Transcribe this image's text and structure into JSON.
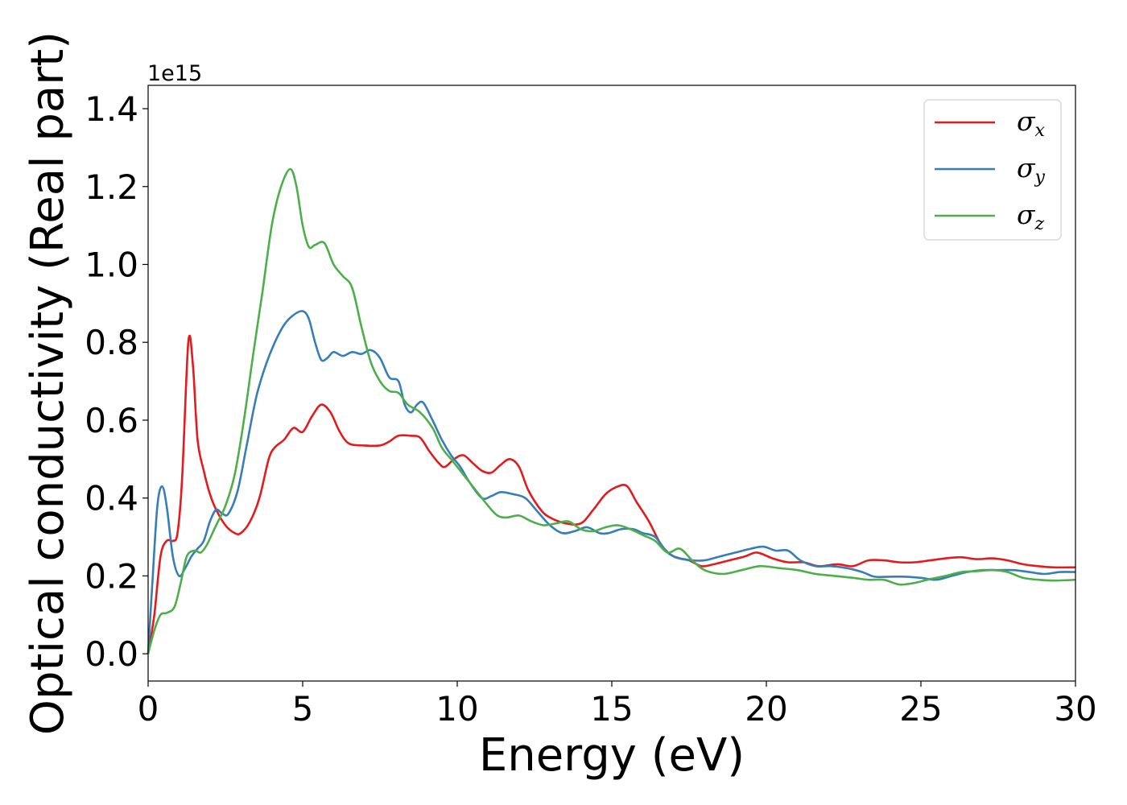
{
  "chart_data": {
    "type": "line",
    "xlabel": "Energy (eV)",
    "ylabel": "Optical conductivity (Real part)",
    "y_offset_label": "1e15",
    "xlim": [
      0,
      30
    ],
    "ylim": [
      -0.07,
      1.46
    ],
    "x_ticks": [
      "0",
      "5",
      "10",
      "15",
      "20",
      "25",
      "30"
    ],
    "y_ticks": [
      "0.0",
      "0.2",
      "0.4",
      "0.6",
      "0.8",
      "1.0",
      "1.2",
      "1.4"
    ],
    "legend_position": "upper right",
    "grid": false,
    "series": [
      {
        "name": "σ",
        "sub": "x",
        "color": "#e41a1c",
        "points": [
          [
            0,
            0
          ],
          [
            0.2,
            0.1
          ],
          [
            0.4,
            0.25
          ],
          [
            0.6,
            0.29
          ],
          [
            0.8,
            0.29
          ],
          [
            0.95,
            0.31
          ],
          [
            1.1,
            0.45
          ],
          [
            1.3,
            0.8
          ],
          [
            1.45,
            0.74
          ],
          [
            1.6,
            0.55
          ],
          [
            1.8,
            0.47
          ],
          [
            2.0,
            0.41
          ],
          [
            2.2,
            0.37
          ],
          [
            2.5,
            0.33
          ],
          [
            2.8,
            0.31
          ],
          [
            3.0,
            0.31
          ],
          [
            3.3,
            0.34
          ],
          [
            3.6,
            0.4
          ],
          [
            3.9,
            0.5
          ],
          [
            4.1,
            0.53
          ],
          [
            4.4,
            0.55
          ],
          [
            4.7,
            0.58
          ],
          [
            5.0,
            0.57
          ],
          [
            5.3,
            0.61
          ],
          [
            5.6,
            0.64
          ],
          [
            5.9,
            0.62
          ],
          [
            6.2,
            0.57
          ],
          [
            6.5,
            0.54
          ],
          [
            7.0,
            0.535
          ],
          [
            7.5,
            0.535
          ],
          [
            7.8,
            0.545
          ],
          [
            8.1,
            0.56
          ],
          [
            8.5,
            0.56
          ],
          [
            8.8,
            0.555
          ],
          [
            9.1,
            0.52
          ],
          [
            9.4,
            0.49
          ],
          [
            9.6,
            0.48
          ],
          [
            9.9,
            0.5
          ],
          [
            10.2,
            0.51
          ],
          [
            10.5,
            0.49
          ],
          [
            10.8,
            0.47
          ],
          [
            11.1,
            0.465
          ],
          [
            11.4,
            0.485
          ],
          [
            11.7,
            0.5
          ],
          [
            12.0,
            0.48
          ],
          [
            12.3,
            0.42
          ],
          [
            12.7,
            0.37
          ],
          [
            13.0,
            0.35
          ],
          [
            13.5,
            0.335
          ],
          [
            14.0,
            0.335
          ],
          [
            14.4,
            0.37
          ],
          [
            14.8,
            0.41
          ],
          [
            15.2,
            0.43
          ],
          [
            15.5,
            0.43
          ],
          [
            15.8,
            0.39
          ],
          [
            16.2,
            0.34
          ],
          [
            16.6,
            0.28
          ],
          [
            17.0,
            0.25
          ],
          [
            17.5,
            0.24
          ],
          [
            17.9,
            0.225
          ],
          [
            18.3,
            0.23
          ],
          [
            18.8,
            0.24
          ],
          [
            19.3,
            0.25
          ],
          [
            19.7,
            0.26
          ],
          [
            20.2,
            0.245
          ],
          [
            20.7,
            0.235
          ],
          [
            21.2,
            0.235
          ],
          [
            21.7,
            0.225
          ],
          [
            22.3,
            0.23
          ],
          [
            22.8,
            0.225
          ],
          [
            23.3,
            0.24
          ],
          [
            23.8,
            0.24
          ],
          [
            24.3,
            0.235
          ],
          [
            24.8,
            0.235
          ],
          [
            25.3,
            0.24
          ],
          [
            25.8,
            0.245
          ],
          [
            26.3,
            0.248
          ],
          [
            26.8,
            0.243
          ],
          [
            27.3,
            0.245
          ],
          [
            27.8,
            0.24
          ],
          [
            28.3,
            0.23
          ],
          [
            28.8,
            0.225
          ],
          [
            29.3,
            0.222
          ],
          [
            30,
            0.222
          ]
        ]
      },
      {
        "name": "σ",
        "sub": "y",
        "color": "#377eb8",
        "points": [
          [
            0,
            0
          ],
          [
            0.15,
            0.2
          ],
          [
            0.3,
            0.38
          ],
          [
            0.45,
            0.43
          ],
          [
            0.6,
            0.38
          ],
          [
            0.8,
            0.25
          ],
          [
            1.0,
            0.2
          ],
          [
            1.2,
            0.22
          ],
          [
            1.4,
            0.25
          ],
          [
            1.6,
            0.27
          ],
          [
            1.8,
            0.29
          ],
          [
            2.0,
            0.34
          ],
          [
            2.2,
            0.37
          ],
          [
            2.4,
            0.36
          ],
          [
            2.6,
            0.36
          ],
          [
            2.9,
            0.42
          ],
          [
            3.2,
            0.54
          ],
          [
            3.5,
            0.66
          ],
          [
            3.8,
            0.74
          ],
          [
            4.1,
            0.8
          ],
          [
            4.4,
            0.845
          ],
          [
            4.7,
            0.87
          ],
          [
            5.0,
            0.88
          ],
          [
            5.2,
            0.86
          ],
          [
            5.4,
            0.8
          ],
          [
            5.6,
            0.755
          ],
          [
            5.8,
            0.76
          ],
          [
            6.0,
            0.775
          ],
          [
            6.3,
            0.765
          ],
          [
            6.6,
            0.775
          ],
          [
            6.9,
            0.77
          ],
          [
            7.2,
            0.78
          ],
          [
            7.5,
            0.76
          ],
          [
            7.8,
            0.71
          ],
          [
            8.1,
            0.7
          ],
          [
            8.3,
            0.64
          ],
          [
            8.5,
            0.62
          ],
          [
            8.7,
            0.64
          ],
          [
            8.9,
            0.645
          ],
          [
            9.2,
            0.6
          ],
          [
            9.5,
            0.55
          ],
          [
            9.8,
            0.51
          ],
          [
            10.1,
            0.48
          ],
          [
            10.4,
            0.44
          ],
          [
            10.8,
            0.4
          ],
          [
            11.1,
            0.405
          ],
          [
            11.4,
            0.415
          ],
          [
            11.8,
            0.41
          ],
          [
            12.2,
            0.4
          ],
          [
            12.6,
            0.365
          ],
          [
            13.0,
            0.33
          ],
          [
            13.4,
            0.31
          ],
          [
            13.8,
            0.315
          ],
          [
            14.2,
            0.325
          ],
          [
            14.6,
            0.31
          ],
          [
            14.9,
            0.31
          ],
          [
            15.3,
            0.32
          ],
          [
            15.7,
            0.32
          ],
          [
            16.0,
            0.31
          ],
          [
            16.4,
            0.3
          ],
          [
            16.8,
            0.26
          ],
          [
            17.2,
            0.245
          ],
          [
            17.6,
            0.24
          ],
          [
            18.0,
            0.24
          ],
          [
            18.5,
            0.25
          ],
          [
            19.0,
            0.26
          ],
          [
            19.5,
            0.27
          ],
          [
            19.9,
            0.275
          ],
          [
            20.3,
            0.265
          ],
          [
            20.7,
            0.265
          ],
          [
            21.1,
            0.24
          ],
          [
            21.6,
            0.225
          ],
          [
            22.1,
            0.225
          ],
          [
            22.6,
            0.22
          ],
          [
            23.1,
            0.21
          ],
          [
            23.5,
            0.198
          ],
          [
            24.0,
            0.198
          ],
          [
            24.5,
            0.198
          ],
          [
            25.0,
            0.195
          ],
          [
            25.5,
            0.19
          ],
          [
            26.0,
            0.2
          ],
          [
            26.5,
            0.21
          ],
          [
            27.0,
            0.215
          ],
          [
            27.5,
            0.215
          ],
          [
            28.0,
            0.215
          ],
          [
            28.5,
            0.21
          ],
          [
            29.0,
            0.205
          ],
          [
            29.5,
            0.21
          ],
          [
            30,
            0.21
          ]
        ]
      },
      {
        "name": "σ",
        "sub": "z",
        "color": "#4daf4a",
        "points": [
          [
            0,
            0
          ],
          [
            0.2,
            0.06
          ],
          [
            0.4,
            0.1
          ],
          [
            0.6,
            0.105
          ],
          [
            0.85,
            0.12
          ],
          [
            1.05,
            0.18
          ],
          [
            1.25,
            0.25
          ],
          [
            1.5,
            0.265
          ],
          [
            1.7,
            0.26
          ],
          [
            1.9,
            0.28
          ],
          [
            2.2,
            0.33
          ],
          [
            2.5,
            0.38
          ],
          [
            2.8,
            0.46
          ],
          [
            3.1,
            0.6
          ],
          [
            3.4,
            0.77
          ],
          [
            3.7,
            0.93
          ],
          [
            4.0,
            1.1
          ],
          [
            4.3,
            1.2
          ],
          [
            4.6,
            1.245
          ],
          [
            4.8,
            1.2
          ],
          [
            5.0,
            1.1
          ],
          [
            5.2,
            1.045
          ],
          [
            5.4,
            1.05
          ],
          [
            5.7,
            1.055
          ],
          [
            6.0,
            1.0
          ],
          [
            6.3,
            0.97
          ],
          [
            6.6,
            0.94
          ],
          [
            6.9,
            0.84
          ],
          [
            7.2,
            0.75
          ],
          [
            7.5,
            0.7
          ],
          [
            7.8,
            0.675
          ],
          [
            8.1,
            0.67
          ],
          [
            8.4,
            0.64
          ],
          [
            8.8,
            0.62
          ],
          [
            9.2,
            0.58
          ],
          [
            9.5,
            0.53
          ],
          [
            9.8,
            0.5
          ],
          [
            10.2,
            0.46
          ],
          [
            10.6,
            0.42
          ],
          [
            11.0,
            0.38
          ],
          [
            11.3,
            0.355
          ],
          [
            11.6,
            0.35
          ],
          [
            12.0,
            0.355
          ],
          [
            12.4,
            0.34
          ],
          [
            12.8,
            0.33
          ],
          [
            13.2,
            0.335
          ],
          [
            13.6,
            0.34
          ],
          [
            14.0,
            0.32
          ],
          [
            14.4,
            0.315
          ],
          [
            14.8,
            0.325
          ],
          [
            15.2,
            0.33
          ],
          [
            15.6,
            0.32
          ],
          [
            16.0,
            0.305
          ],
          [
            16.4,
            0.29
          ],
          [
            16.8,
            0.26
          ],
          [
            17.2,
            0.27
          ],
          [
            17.6,
            0.24
          ],
          [
            18.0,
            0.215
          ],
          [
            18.6,
            0.205
          ],
          [
            19.2,
            0.215
          ],
          [
            19.8,
            0.225
          ],
          [
            20.4,
            0.22
          ],
          [
            21.0,
            0.215
          ],
          [
            21.6,
            0.205
          ],
          [
            22.2,
            0.2
          ],
          [
            22.8,
            0.195
          ],
          [
            23.3,
            0.19
          ],
          [
            23.8,
            0.19
          ],
          [
            24.3,
            0.178
          ],
          [
            24.8,
            0.182
          ],
          [
            25.3,
            0.192
          ],
          [
            25.8,
            0.2
          ],
          [
            26.3,
            0.21
          ],
          [
            26.8,
            0.212
          ],
          [
            27.3,
            0.215
          ],
          [
            27.8,
            0.21
          ],
          [
            28.3,
            0.195
          ],
          [
            28.8,
            0.19
          ],
          [
            29.3,
            0.188
          ],
          [
            30,
            0.19
          ]
        ]
      }
    ]
  }
}
